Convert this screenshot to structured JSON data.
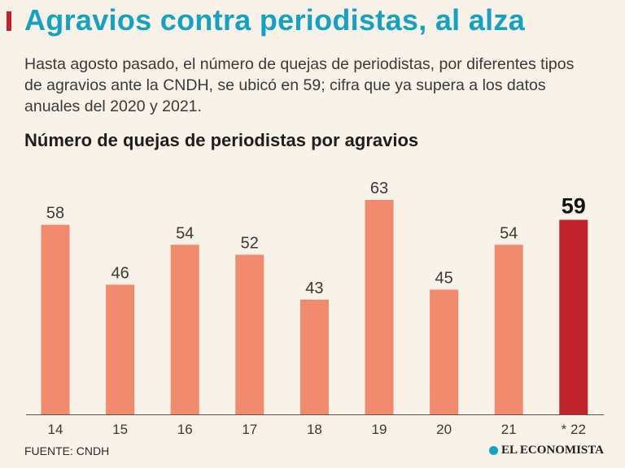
{
  "header": {
    "title": "Agravios contra periodistas, al alza",
    "subtitle": "Hasta agosto pasado, el número de quejas de periodistas, por diferentes tipos de agravios ante la CNDH, se ubicó en 59; cifra que ya supera a los datos anuales del 2020 y 2021."
  },
  "colors": {
    "title": "#14a2c4",
    "bar": "#f28b6e",
    "highlight_bar": "#c0232c",
    "background": "#f8f2e9"
  },
  "chart_data": {
    "type": "bar",
    "title": "Número de quejas de periodistas por agravios",
    "categories": [
      "14",
      "15",
      "16",
      "17",
      "18",
      "19",
      "20",
      "21",
      "* 22"
    ],
    "values": [
      58,
      46,
      54,
      52,
      43,
      63,
      45,
      54,
      59
    ],
    "highlight_index": 8,
    "xlabel": "",
    "ylabel": "",
    "ylim": [
      0,
      70
    ],
    "grid": false,
    "legend": "none"
  },
  "footer": {
    "source": "FUENTE: CNDH",
    "logo_text": "EL ECONOMISTA",
    "logo_icon": "globe-icon"
  }
}
